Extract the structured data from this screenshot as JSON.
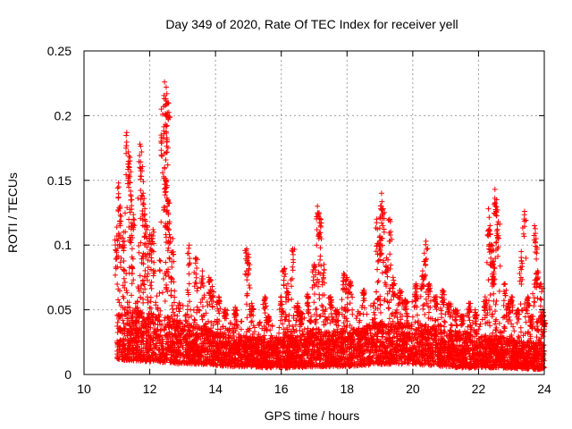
{
  "chart_data": {
    "type": "scatter",
    "title": "Day 349 of 2020, Rate Of TEC Index for receiver yell",
    "xlabel": "GPS time / hours",
    "ylabel": "ROTI / TECUs",
    "xlim": [
      10,
      24
    ],
    "ylim": [
      0,
      0.25
    ],
    "xticks": [
      10,
      12,
      14,
      16,
      18,
      20,
      22,
      24
    ],
    "xtick_labels": [
      "10",
      "12",
      "14",
      "16",
      "18",
      "20",
      "22",
      "24"
    ],
    "yticks": [
      0,
      0.05,
      0.1,
      0.15,
      0.2,
      0.25
    ],
    "ytick_labels": [
      "0",
      "0.05",
      "0.1",
      "0.15",
      "0.2",
      "0.25"
    ],
    "grid": true,
    "marker": "+",
    "series_color": "#ff0000",
    "series": [
      {
        "name": "ROTI",
        "points": [
          [
            11.0,
            0.107
          ],
          [
            11.05,
            0.148
          ],
          [
            11.1,
            0.13
          ],
          [
            11.2,
            0.11
          ],
          [
            11.3,
            0.187
          ],
          [
            11.35,
            0.172
          ],
          [
            11.4,
            0.165
          ],
          [
            11.45,
            0.135
          ],
          [
            11.5,
            0.12
          ],
          [
            11.7,
            0.178
          ],
          [
            11.75,
            0.172
          ],
          [
            11.8,
            0.14
          ],
          [
            11.85,
            0.128
          ],
          [
            11.9,
            0.115
          ],
          [
            12.0,
            0.108
          ],
          [
            12.1,
            0.112
          ],
          [
            12.35,
            0.205
          ],
          [
            12.45,
            0.226
          ],
          [
            12.5,
            0.222
          ],
          [
            12.5,
            0.2
          ],
          [
            12.55,
            0.21
          ],
          [
            12.45,
            0.16
          ],
          [
            12.5,
            0.15
          ],
          [
            12.55,
            0.135
          ],
          [
            12.6,
            0.118
          ],
          [
            12.7,
            0.105
          ],
          [
            13.2,
            0.1
          ],
          [
            13.4,
            0.09
          ],
          [
            13.6,
            0.08
          ],
          [
            13.8,
            0.075
          ],
          [
            13.9,
            0.068
          ],
          [
            14.1,
            0.06
          ],
          [
            14.3,
            0.05
          ],
          [
            14.6,
            0.052
          ],
          [
            14.95,
            0.097
          ],
          [
            15.0,
            0.093
          ],
          [
            15.1,
            0.055
          ],
          [
            15.5,
            0.06
          ],
          [
            15.6,
            0.045
          ],
          [
            16.0,
            0.06
          ],
          [
            16.1,
            0.082
          ],
          [
            16.2,
            0.07
          ],
          [
            16.35,
            0.097
          ],
          [
            16.5,
            0.055
          ],
          [
            16.6,
            0.048
          ],
          [
            16.8,
            0.062
          ],
          [
            17.0,
            0.085
          ],
          [
            17.1,
            0.13
          ],
          [
            17.15,
            0.125
          ],
          [
            17.2,
            0.12
          ],
          [
            17.3,
            0.085
          ],
          [
            17.5,
            0.06
          ],
          [
            17.7,
            0.05
          ],
          [
            17.9,
            0.078
          ],
          [
            18.0,
            0.075
          ],
          [
            18.1,
            0.072
          ],
          [
            18.5,
            0.065
          ],
          [
            18.9,
            0.12
          ],
          [
            19.0,
            0.107
          ],
          [
            19.05,
            0.14
          ],
          [
            19.1,
            0.128
          ],
          [
            19.2,
            0.09
          ],
          [
            19.3,
            0.12
          ],
          [
            19.4,
            0.075
          ],
          [
            19.6,
            0.065
          ],
          [
            19.8,
            0.055
          ],
          [
            20.1,
            0.07
          ],
          [
            20.3,
            0.08
          ],
          [
            20.4,
            0.103
          ],
          [
            20.5,
            0.07
          ],
          [
            20.7,
            0.06
          ],
          [
            20.9,
            0.065
          ],
          [
            21.1,
            0.055
          ],
          [
            21.3,
            0.05
          ],
          [
            21.5,
            0.045
          ],
          [
            21.7,
            0.055
          ],
          [
            21.9,
            0.05
          ],
          [
            22.2,
            0.06
          ],
          [
            22.3,
            0.128
          ],
          [
            22.35,
            0.115
          ],
          [
            22.4,
            0.1
          ],
          [
            22.45,
            0.085
          ],
          [
            22.5,
            0.143
          ],
          [
            22.55,
            0.135
          ],
          [
            22.6,
            0.118
          ],
          [
            22.8,
            0.07
          ],
          [
            22.9,
            0.055
          ],
          [
            23.0,
            0.06
          ],
          [
            23.2,
            0.05
          ],
          [
            23.3,
            0.095
          ],
          [
            23.4,
            0.126
          ],
          [
            23.5,
            0.06
          ],
          [
            23.6,
            0.045
          ],
          [
            23.7,
            0.115
          ],
          [
            23.75,
            0.105
          ],
          [
            23.8,
            0.08
          ],
          [
            23.9,
            0.07
          ],
          [
            23.95,
            0.05
          ],
          [
            24.0,
            0.04
          ]
        ],
        "bulk_envelope": {
          "x": [
            11.0,
            11.5,
            12.0,
            12.5,
            13.0,
            13.5,
            14.0,
            14.5,
            15.0,
            15.5,
            16.0,
            16.5,
            17.0,
            17.5,
            18.0,
            18.5,
            19.0,
            19.5,
            20.0,
            20.5,
            21.0,
            21.5,
            22.0,
            22.5,
            23.0,
            23.5,
            24.0
          ],
          "low": [
            0.012,
            0.01,
            0.01,
            0.009,
            0.008,
            0.008,
            0.007,
            0.006,
            0.006,
            0.005,
            0.005,
            0.005,
            0.006,
            0.006,
            0.006,
            0.007,
            0.008,
            0.008,
            0.008,
            0.007,
            0.006,
            0.005,
            0.005,
            0.005,
            0.005,
            0.004,
            0.004
          ],
          "high": [
            0.075,
            0.07,
            0.068,
            0.065,
            0.055,
            0.05,
            0.045,
            0.04,
            0.042,
            0.04,
            0.042,
            0.045,
            0.05,
            0.045,
            0.048,
            0.05,
            0.06,
            0.058,
            0.058,
            0.055,
            0.05,
            0.045,
            0.042,
            0.045,
            0.04,
            0.035,
            0.038
          ],
          "dense": [
            0.04,
            0.038,
            0.035,
            0.033,
            0.03,
            0.027,
            0.025,
            0.022,
            0.022,
            0.021,
            0.021,
            0.022,
            0.025,
            0.024,
            0.025,
            0.027,
            0.03,
            0.03,
            0.03,
            0.028,
            0.025,
            0.023,
            0.022,
            0.022,
            0.02,
            0.018,
            0.018
          ]
        }
      }
    ]
  }
}
